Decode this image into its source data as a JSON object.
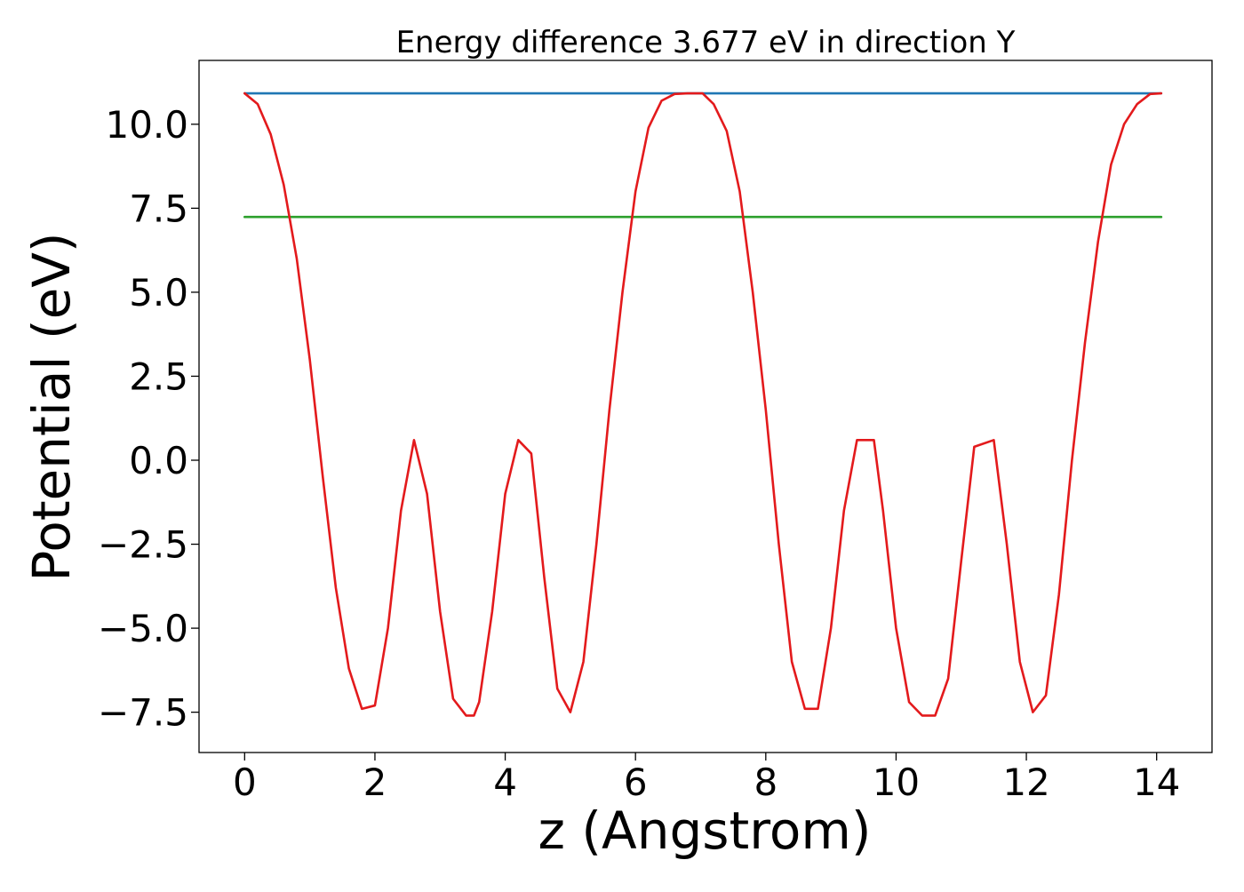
{
  "chart_data": {
    "type": "line",
    "title": "Energy difference 3.677 eV in direction Y",
    "xlabel": "z (Angstrom)",
    "ylabel": "Potential (eV)",
    "xlim": [
      -0.7,
      14.85
    ],
    "ylim": [
      -8.7,
      11.9
    ],
    "xticks": [
      0,
      2,
      4,
      6,
      8,
      10,
      12,
      14
    ],
    "xtick_labels": [
      "0",
      "2",
      "4",
      "6",
      "8",
      "10",
      "12",
      "14"
    ],
    "yticks": [
      -7.5,
      -5.0,
      -2.5,
      0.0,
      2.5,
      5.0,
      7.5,
      10.0
    ],
    "ytick_labels": [
      "−7.5",
      "−5.0",
      "−2.5",
      "0.0",
      "2.5",
      "5.0",
      "7.5",
      "10.0"
    ],
    "grid": false,
    "legend": "none",
    "series": [
      {
        "color": "#1f77b4",
        "x": [
          0.0,
          14.07
        ],
        "y": [
          10.92,
          10.92
        ]
      },
      {
        "color": "#2ca02c",
        "x": [
          0.0,
          14.07
        ],
        "y": [
          7.24,
          7.24
        ]
      },
      {
        "color": "#e31a1c",
        "x": [
          0.0,
          0.2,
          0.4,
          0.6,
          0.8,
          1.0,
          1.2,
          1.4,
          1.6,
          1.8,
          2.0,
          2.2,
          2.4,
          2.6,
          2.8,
          3.0,
          3.2,
          3.4,
          3.52,
          3.6,
          3.8,
          4.0,
          4.2,
          4.4,
          4.6,
          4.8,
          5.0,
          5.2,
          5.4,
          5.6,
          5.8,
          6.0,
          6.2,
          6.4,
          6.6,
          6.8,
          7.03,
          7.2,
          7.4,
          7.6,
          7.8,
          8.0,
          8.2,
          8.4,
          8.6,
          8.8,
          9.0,
          9.2,
          9.4,
          9.66,
          9.8,
          10.0,
          10.2,
          10.4,
          10.6,
          10.8,
          11.0,
          11.2,
          11.5,
          11.7,
          11.9,
          12.1,
          12.3,
          12.5,
          12.7,
          12.9,
          13.1,
          13.3,
          13.5,
          13.7,
          13.9,
          14.07
        ],
        "y": [
          10.92,
          10.6,
          9.7,
          8.2,
          6.0,
          3.0,
          -0.5,
          -3.8,
          -6.2,
          -7.4,
          -7.3,
          -5.0,
          -1.5,
          0.6,
          -1.0,
          -4.5,
          -7.1,
          -7.6,
          -7.6,
          -7.2,
          -4.5,
          -1.0,
          0.6,
          0.2,
          -3.5,
          -6.8,
          -7.5,
          -6.0,
          -2.5,
          1.5,
          5.0,
          8.0,
          9.9,
          10.7,
          10.9,
          10.92,
          10.92,
          10.6,
          9.8,
          8.0,
          5.0,
          1.5,
          -2.5,
          -6.0,
          -7.4,
          -7.4,
          -5.0,
          -1.5,
          0.6,
          0.6,
          -1.5,
          -5.0,
          -7.2,
          -7.6,
          -7.6,
          -6.5,
          -3.0,
          0.4,
          0.6,
          -2.5,
          -6.0,
          -7.5,
          -7.0,
          -4.0,
          0.0,
          3.5,
          6.5,
          8.8,
          10.0,
          10.6,
          10.9,
          10.92
        ]
      }
    ]
  }
}
